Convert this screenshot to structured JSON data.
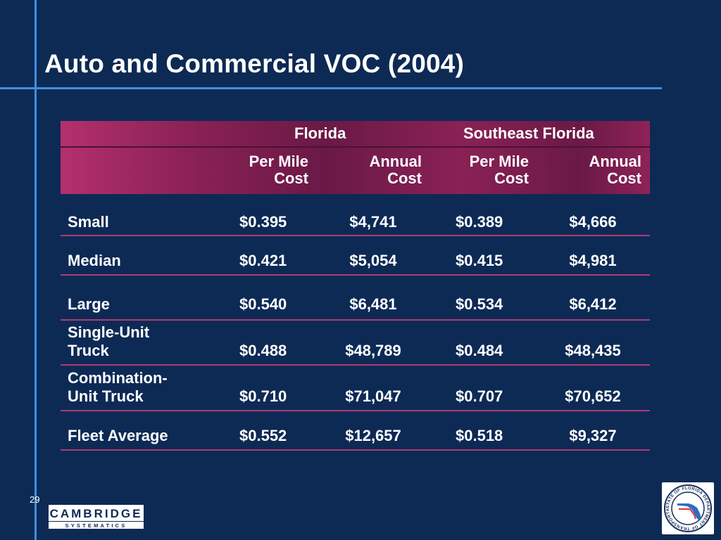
{
  "slide": {
    "title": "Auto and Commercial VOC (2004)",
    "page_number": "29"
  },
  "table": {
    "group_headers": [
      "Florida",
      "Southeast Florida"
    ],
    "sub_headers": [
      {
        "line1": "Per Mile",
        "line2": "Cost"
      },
      {
        "line1": "Annual",
        "line2": "Cost"
      },
      {
        "line1": "Per Mile",
        "line2": "Cost"
      },
      {
        "line1": "Annual",
        "line2": "Cost"
      }
    ],
    "rows": [
      {
        "label1": "Small",
        "label2": "",
        "values": [
          "$0.395",
          "$4,741",
          "$0.389",
          "$4,666"
        ]
      },
      {
        "label1": "Median",
        "label2": "",
        "values": [
          "$0.421",
          "$5,054",
          "$0.415",
          "$4,981"
        ]
      },
      {
        "label1": "Large",
        "label2": "",
        "values": [
          "$0.540",
          "$6,481",
          "$0.534",
          "$6,412"
        ]
      },
      {
        "label1": "Single-Unit",
        "label2": "Truck",
        "values": [
          "$0.488",
          "$48,789",
          "$0.484",
          "$48,435"
        ]
      },
      {
        "label1": "Combination-",
        "label2": "Unit Truck",
        "values": [
          "$0.710",
          "$71,047",
          "$0.707",
          "$70,652"
        ]
      },
      {
        "label1": "Fleet Average",
        "label2": "",
        "values": [
          "$0.552",
          "$12,657",
          "$0.518",
          "$9,327"
        ]
      }
    ]
  },
  "logos": {
    "cambridge": {
      "line1": "CAMBRIDGE",
      "line2": "SYSTEMATICS"
    },
    "fdot": {
      "ring_text": "STATE OF FLORIDA DEPARTMENT OF TRANSPORTATION"
    }
  },
  "colors": {
    "background": "#0d2a55",
    "accent_line": "#3f8fe0",
    "header_magenta": "#8a2157",
    "row_divider": "#b03a74"
  }
}
